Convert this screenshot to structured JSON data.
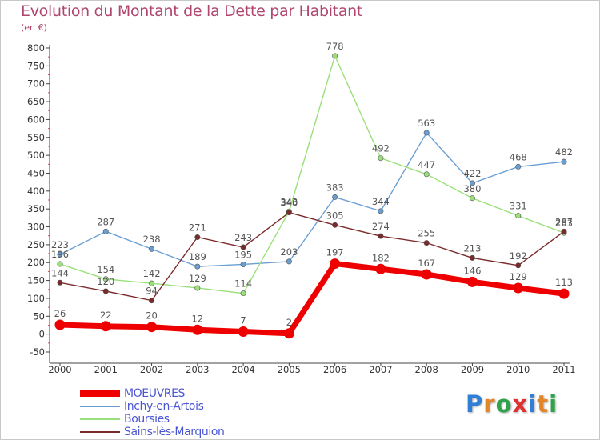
{
  "header": {
    "title": "Evolution du Montant de la Dette par Habitant",
    "subtitle": "(en €)"
  },
  "logo": {
    "text": "Proxiti",
    "letters": [
      {
        "ch": "P",
        "color": "#2f7fd8"
      },
      {
        "ch": "r",
        "color": "#e3862a"
      },
      {
        "ch": "o",
        "color": "#2fa24a"
      },
      {
        "ch": "x",
        "color": "#e03030"
      },
      {
        "ch": "i",
        "color": "#2f7fd8"
      },
      {
        "ch": "t",
        "color": "#e3862a"
      },
      {
        "ch": "i",
        "color": "#2fa24a"
      }
    ]
  },
  "chart_data": {
    "type": "line",
    "title": "Evolution du Montant de la Dette par Habitant",
    "subtitle": "(en €)",
    "x": [
      "2000",
      "2001",
      "2002",
      "2003",
      "2004",
      "2005",
      "2006",
      "2007",
      "2008",
      "2009",
      "2010",
      "2011"
    ],
    "ylim": [
      -50,
      800
    ],
    "yticks": [
      -50,
      0,
      50,
      100,
      150,
      200,
      250,
      300,
      350,
      400,
      450,
      500,
      550,
      600,
      650,
      700,
      750,
      800
    ],
    "grid": false,
    "legend_position": "bottom-left",
    "series": [
      {
        "name": "MOEUVRES",
        "color": "#ee0000",
        "values": [
          26,
          22,
          20,
          12,
          7,
          2,
          197,
          182,
          167,
          146,
          129,
          113
        ]
      },
      {
        "name": "Inchy-en-Artois",
        "color": "#6a9fd2",
        "values": [
          223,
          287,
          238,
          189,
          195,
          203,
          383,
          344,
          563,
          422,
          468,
          482
        ]
      },
      {
        "name": "Boursies",
        "color": "#99e07a",
        "values": [
          196,
          154,
          142,
          129,
          114,
          343,
          778,
          492,
          447,
          380,
          331,
          283
        ]
      },
      {
        "name": "Sains-lès-Marquion",
        "color": "#7a2a2a",
        "values": [
          144,
          120,
          94,
          271,
          243,
          340,
          305,
          274,
          255,
          213,
          192,
          287
        ]
      }
    ]
  }
}
